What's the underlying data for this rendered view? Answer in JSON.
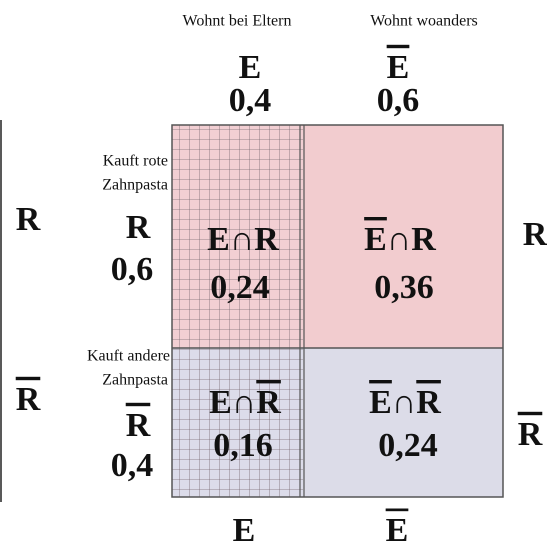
{
  "header": {
    "col1": "Wohnt bei Eltern",
    "col2": "Wohnt woanders"
  },
  "columns": [
    {
      "label": "E",
      "prob": "0,4"
    },
    {
      "label": "E",
      "prob": "0,6"
    }
  ],
  "rows": [
    {
      "label": "R",
      "prob": "0,6",
      "desc": [
        "Kauft rote",
        "Zahnpasta"
      ]
    },
    {
      "label": "R",
      "prob": "0,4",
      "desc": [
        "Kauft andere",
        "Zahnpasta"
      ]
    }
  ],
  "cells": [
    {
      "a": "E",
      "op": "∩",
      "b": "R",
      "prob": "0,24"
    },
    {
      "a": "E",
      "op": "∩",
      "b": "R",
      "prob": "0,36"
    },
    {
      "a": "E",
      "op": "∩",
      "b": "R",
      "prob": "0,16"
    },
    {
      "a": "E",
      "op": "∩",
      "b": "R",
      "prob": "0,24"
    }
  ],
  "side": {
    "left": [
      "R",
      "R"
    ],
    "right": [
      "R",
      "R"
    ],
    "bottom": [
      "E",
      "E"
    ]
  }
}
